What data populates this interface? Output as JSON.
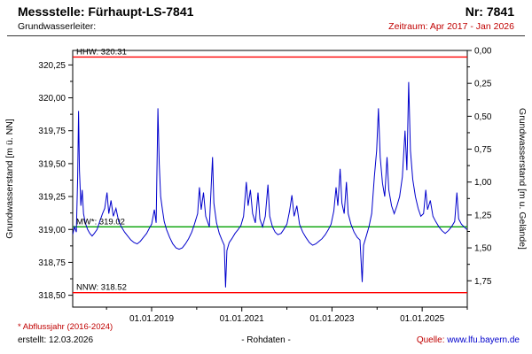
{
  "header": {
    "title": "Messstelle: Fürhaupt-LS-7841",
    "number": "Nr: 7841",
    "aquifer_label": "Grundwasserleiter:",
    "period": "Zeitraum: Apr 2017 - Jan 2026"
  },
  "footer": {
    "footnote": "* Abflussjahr (2016-2024)",
    "created": "erstellt: 12.03.2026",
    "center": "- Rohdaten -",
    "source_label": "Quelle:",
    "source_link": "www.lfu.bayern.de"
  },
  "colors": {
    "text-red": "#c00000",
    "link-blue": "#0000cc",
    "series-blue": "#0000cc",
    "ref-red": "#ff0000",
    "ref-green": "#00a000"
  },
  "chart_data": {
    "type": "line",
    "title": "Grundwasserstand Messstelle Fürhaupt-LS-7841",
    "grid": false,
    "legend_position": "none",
    "x_axis": {
      "range": [
        2017.25,
        2026.0
      ],
      "tick_values": [
        2019.0,
        2021.0,
        2023.0,
        2025.0
      ],
      "tick_labels": [
        "01.01.2019",
        "01.01.2021",
        "01.01.2023",
        "01.01.2025"
      ],
      "minor_tick_values": [
        2018.0,
        2020.0,
        2022.0,
        2024.0,
        2026.0
      ]
    },
    "y_left": {
      "label": "Grundwasserstand [m ü. NN]",
      "range": [
        318.41,
        320.36
      ],
      "ticks": [
        318.5,
        318.75,
        319.0,
        319.25,
        319.5,
        319.75,
        320.0,
        320.25
      ],
      "tick_labels": [
        "318,50",
        "318,75",
        "319,00",
        "319,25",
        "319,50",
        "319,75",
        "320,00",
        "320,25"
      ]
    },
    "y_right": {
      "label": "Grundwasserstand [m u. Gelände]",
      "ground_elevation": 320.36,
      "ticks": [
        0.0,
        0.25,
        0.5,
        0.75,
        1.0,
        1.25,
        1.5,
        1.75
      ],
      "tick_labels": [
        "0,00",
        "0,25",
        "0,50",
        "0,75",
        "1,00",
        "1,25",
        "1,50",
        "1,75"
      ]
    },
    "reference_lines": [
      {
        "name": "HHW",
        "label": "HHW: 320.31",
        "value": 320.31,
        "color": "#ff0000"
      },
      {
        "name": "MW",
        "label": "MW*: 319.02",
        "value": 319.02,
        "color": "#00a000"
      },
      {
        "name": "NNW",
        "label": "NNW: 318.52",
        "value": 318.52,
        "color": "#ff0000"
      }
    ],
    "series": [
      {
        "name": "Grundwasserstand (Rohdaten)",
        "color": "#0000cc",
        "points": [
          [
            2017.25,
            318.96
          ],
          [
            2017.29,
            319.02
          ],
          [
            2017.33,
            318.98
          ],
          [
            2017.36,
            319.4
          ],
          [
            2017.38,
            319.9
          ],
          [
            2017.4,
            319.45
          ],
          [
            2017.43,
            319.18
          ],
          [
            2017.46,
            319.3
          ],
          [
            2017.49,
            319.12
          ],
          [
            2017.53,
            319.05
          ],
          [
            2017.58,
            319.0
          ],
          [
            2017.63,
            318.97
          ],
          [
            2017.68,
            318.95
          ],
          [
            2017.73,
            318.97
          ],
          [
            2017.79,
            319.0
          ],
          [
            2017.85,
            319.06
          ],
          [
            2017.91,
            319.12
          ],
          [
            2017.96,
            319.16
          ],
          [
            2018.01,
            319.28
          ],
          [
            2018.05,
            319.12
          ],
          [
            2018.1,
            319.22
          ],
          [
            2018.15,
            319.1
          ],
          [
            2018.21,
            319.16
          ],
          [
            2018.27,
            319.06
          ],
          [
            2018.33,
            319.02
          ],
          [
            2018.4,
            318.98
          ],
          [
            2018.47,
            318.95
          ],
          [
            2018.54,
            318.92
          ],
          [
            2018.61,
            318.9
          ],
          [
            2018.68,
            318.89
          ],
          [
            2018.75,
            318.91
          ],
          [
            2018.82,
            318.94
          ],
          [
            2018.89,
            318.97
          ],
          [
            2018.95,
            319.01
          ],
          [
            2019.0,
            319.04
          ],
          [
            2019.06,
            319.15
          ],
          [
            2019.1,
            319.05
          ],
          [
            2019.14,
            319.92
          ],
          [
            2019.17,
            319.5
          ],
          [
            2019.2,
            319.25
          ],
          [
            2019.24,
            319.15
          ],
          [
            2019.28,
            319.06
          ],
          [
            2019.33,
            319.0
          ],
          [
            2019.4,
            318.94
          ],
          [
            2019.47,
            318.89
          ],
          [
            2019.54,
            318.86
          ],
          [
            2019.61,
            318.85
          ],
          [
            2019.68,
            318.86
          ],
          [
            2019.75,
            318.89
          ],
          [
            2019.82,
            318.93
          ],
          [
            2019.89,
            318.98
          ],
          [
            2019.95,
            319.04
          ],
          [
            2020.02,
            319.12
          ],
          [
            2020.06,
            319.32
          ],
          [
            2020.1,
            319.15
          ],
          [
            2020.15,
            319.28
          ],
          [
            2020.2,
            319.1
          ],
          [
            2020.28,
            319.02
          ],
          [
            2020.35,
            319.55
          ],
          [
            2020.38,
            319.2
          ],
          [
            2020.44,
            319.05
          ],
          [
            2020.5,
            318.97
          ],
          [
            2020.56,
            318.92
          ],
          [
            2020.61,
            318.88
          ],
          [
            2020.64,
            318.56
          ],
          [
            2020.67,
            318.84
          ],
          [
            2020.72,
            318.9
          ],
          [
            2020.78,
            318.93
          ],
          [
            2020.85,
            318.97
          ],
          [
            2020.92,
            319.0
          ],
          [
            2020.98,
            319.03
          ],
          [
            2021.04,
            319.1
          ],
          [
            2021.1,
            319.36
          ],
          [
            2021.14,
            319.18
          ],
          [
            2021.19,
            319.3
          ],
          [
            2021.24,
            319.12
          ],
          [
            2021.3,
            319.05
          ],
          [
            2021.36,
            319.28
          ],
          [
            2021.4,
            319.08
          ],
          [
            2021.46,
            319.02
          ],
          [
            2021.52,
            319.1
          ],
          [
            2021.58,
            319.34
          ],
          [
            2021.62,
            319.1
          ],
          [
            2021.68,
            319.02
          ],
          [
            2021.74,
            318.98
          ],
          [
            2021.8,
            318.96
          ],
          [
            2021.87,
            318.97
          ],
          [
            2021.93,
            319.0
          ],
          [
            2022.0,
            319.04
          ],
          [
            2022.06,
            319.14
          ],
          [
            2022.11,
            319.26
          ],
          [
            2022.16,
            319.1
          ],
          [
            2022.22,
            319.18
          ],
          [
            2022.28,
            319.04
          ],
          [
            2022.35,
            318.98
          ],
          [
            2022.42,
            318.94
          ],
          [
            2022.5,
            318.9
          ],
          [
            2022.57,
            318.88
          ],
          [
            2022.64,
            318.89
          ],
          [
            2022.71,
            318.91
          ],
          [
            2022.78,
            318.93
          ],
          [
            2022.85,
            318.96
          ],
          [
            2022.92,
            319.0
          ],
          [
            2022.98,
            319.04
          ],
          [
            2023.04,
            319.14
          ],
          [
            2023.09,
            319.32
          ],
          [
            2023.13,
            319.18
          ],
          [
            2023.18,
            319.46
          ],
          [
            2023.22,
            319.2
          ],
          [
            2023.27,
            319.12
          ],
          [
            2023.32,
            319.36
          ],
          [
            2023.36,
            319.12
          ],
          [
            2023.42,
            319.04
          ],
          [
            2023.49,
            318.98
          ],
          [
            2023.56,
            318.94
          ],
          [
            2023.62,
            318.92
          ],
          [
            2023.67,
            318.6
          ],
          [
            2023.7,
            318.88
          ],
          [
            2023.76,
            318.95
          ],
          [
            2023.82,
            319.02
          ],
          [
            2023.88,
            319.12
          ],
          [
            2023.94,
            319.4
          ],
          [
            2023.99,
            319.6
          ],
          [
            2024.03,
            319.92
          ],
          [
            2024.07,
            319.55
          ],
          [
            2024.12,
            319.35
          ],
          [
            2024.17,
            319.25
          ],
          [
            2024.22,
            319.55
          ],
          [
            2024.26,
            319.3
          ],
          [
            2024.32,
            319.18
          ],
          [
            2024.38,
            319.12
          ],
          [
            2024.44,
            319.18
          ],
          [
            2024.5,
            319.25
          ],
          [
            2024.56,
            319.4
          ],
          [
            2024.62,
            319.75
          ],
          [
            2024.66,
            319.45
          ],
          [
            2024.7,
            320.12
          ],
          [
            2024.74,
            319.6
          ],
          [
            2024.79,
            319.38
          ],
          [
            2024.85,
            319.25
          ],
          [
            2024.91,
            319.16
          ],
          [
            2024.97,
            319.1
          ],
          [
            2025.03,
            319.12
          ],
          [
            2025.08,
            319.3
          ],
          [
            2025.12,
            319.15
          ],
          [
            2025.18,
            319.22
          ],
          [
            2025.24,
            319.1
          ],
          [
            2025.3,
            319.06
          ],
          [
            2025.37,
            319.02
          ],
          [
            2025.44,
            318.99
          ],
          [
            2025.51,
            318.97
          ],
          [
            2025.58,
            318.99
          ],
          [
            2025.65,
            319.02
          ],
          [
            2025.72,
            319.06
          ],
          [
            2025.77,
            319.28
          ],
          [
            2025.81,
            319.08
          ],
          [
            2025.87,
            319.04
          ],
          [
            2025.93,
            319.02
          ],
          [
            2025.99,
            319.0
          ]
        ]
      }
    ]
  }
}
